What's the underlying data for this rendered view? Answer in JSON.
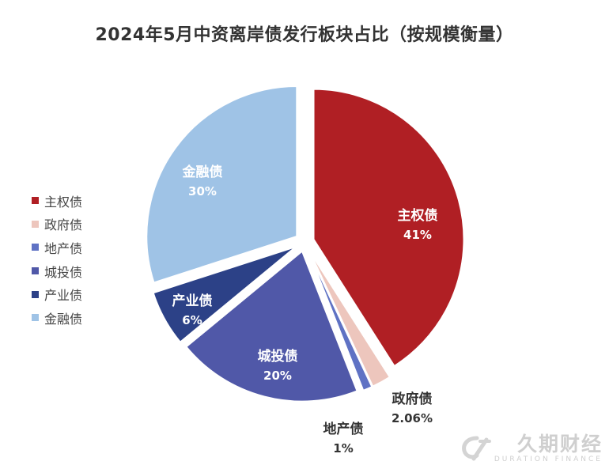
{
  "chart_data": {
    "type": "pie",
    "title": "2024年5月中资离岸债发行板块占比（按规模衡量）",
    "slices": [
      {
        "name": "主权债",
        "value": 41,
        "label": "41%",
        "color": "#b01f24",
        "exploded": true
      },
      {
        "name": "政府债",
        "value": 2.06,
        "label": "2.06%",
        "color": "#edc6bd",
        "exploded": true
      },
      {
        "name": "地产债",
        "value": 1,
        "label": "1%",
        "color": "#5f72c4",
        "exploded": true
      },
      {
        "name": "城投债",
        "value": 20,
        "label": "20%",
        "color": "#5058a8",
        "exploded": true
      },
      {
        "name": "产业债",
        "value": 6,
        "label": "6%",
        "color": "#2c4187",
        "exploded": true
      },
      {
        "name": "金融债",
        "value": 30,
        "label": "30%",
        "color": "#9fc3e6",
        "exploded": true
      }
    ],
    "legend_position": "left"
  },
  "watermark": {
    "main": "久期财经",
    "sub": "DURATION FINANCE"
  }
}
